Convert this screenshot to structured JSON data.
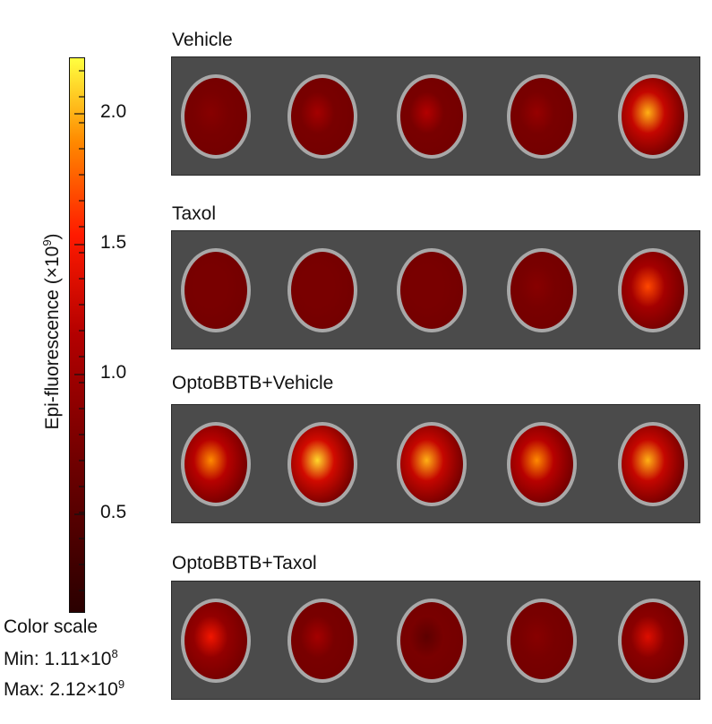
{
  "colorbar": {
    "axis_label": "Epi-fluorescence (×10",
    "axis_label_exp": "9",
    "axis_label_close": ")",
    "ticks": [
      "2.0",
      "1.5",
      "1.0",
      "0.5"
    ],
    "min_value": 0.111,
    "max_value": 2.12,
    "colors": [
      "#2a0000",
      "#6a0000",
      "#b30000",
      "#ff1a00",
      "#ff8a00",
      "#ffff40"
    ]
  },
  "color_scale": {
    "title": "Color scale",
    "min_label": "Min: 1.11×10",
    "min_exp": "8",
    "max_label": "Max: 2.12×10",
    "max_exp": "9"
  },
  "groups": [
    {
      "label": "Vehicle",
      "intensities": [
        0.35,
        0.45,
        0.5,
        0.4,
        0.9
      ]
    },
    {
      "label": "Taxol",
      "intensities": [
        0.3,
        0.3,
        0.3,
        0.35,
        0.75
      ]
    },
    {
      "label": "OptoBBTB+Vehicle",
      "intensities": [
        0.85,
        0.95,
        0.9,
        0.85,
        0.9
      ]
    },
    {
      "label": "OptoBBTB+Taxol",
      "intensities": [
        0.65,
        0.45,
        0.2,
        0.35,
        0.6
      ]
    }
  ]
}
